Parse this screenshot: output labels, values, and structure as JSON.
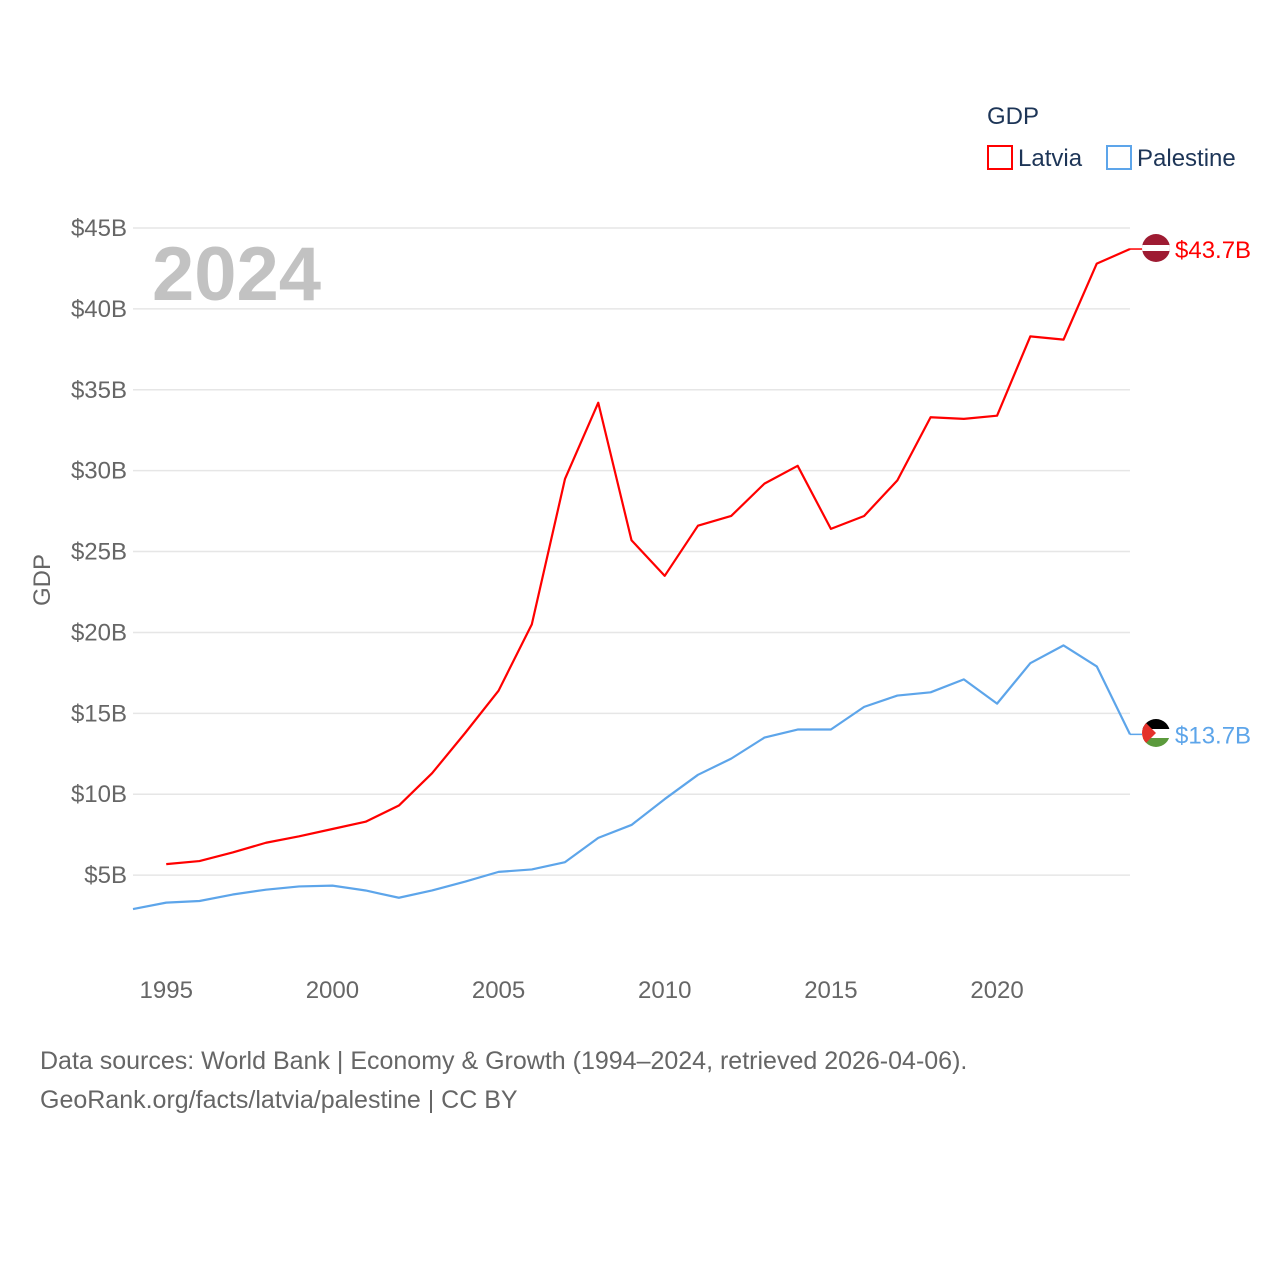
{
  "chart_data": {
    "type": "line",
    "title": "GDP",
    "ylabel": "GDP",
    "xlabel": "",
    "year_label": "2024",
    "ylim": [
      0,
      45
    ],
    "xlim": [
      1994,
      2024
    ],
    "y_ticks": [
      5,
      10,
      15,
      20,
      25,
      30,
      35,
      40,
      45
    ],
    "y_tick_labels": [
      "$5B",
      "$10B",
      "$15B",
      "$20B",
      "$25B",
      "$30B",
      "$35B",
      "$40B",
      "$45B"
    ],
    "x_ticks": [
      1995,
      2000,
      2005,
      2010,
      2015,
      2020
    ],
    "x_tick_labels": [
      "1995",
      "2000",
      "2005",
      "2010",
      "2015",
      "2020"
    ],
    "grid": true,
    "legend_position": "top-right",
    "series": [
      {
        "name": "Latvia",
        "color": "#ff0000",
        "end_label": "$43.7B",
        "x": [
          1995,
          1996,
          1997,
          1998,
          1999,
          2000,
          2001,
          2002,
          2003,
          2004,
          2005,
          2006,
          2007,
          2008,
          2009,
          2010,
          2011,
          2012,
          2013,
          2014,
          2015,
          2016,
          2017,
          2018,
          2019,
          2020,
          2021,
          2022,
          2023,
          2024
        ],
        "values": [
          5.68,
          5.87,
          6.4,
          7.0,
          7.4,
          7.85,
          8.3,
          9.3,
          11.3,
          13.8,
          16.4,
          20.5,
          29.5,
          34.2,
          25.7,
          23.5,
          26.6,
          27.2,
          29.2,
          30.3,
          26.4,
          27.2,
          29.4,
          33.3,
          33.2,
          33.4,
          38.3,
          38.1,
          42.8,
          43.7
        ]
      },
      {
        "name": "Palestine",
        "color": "#5da5ea",
        "end_label": "$13.7B",
        "x": [
          1994,
          1995,
          1996,
          1997,
          1998,
          1999,
          2000,
          2001,
          2002,
          2003,
          2004,
          2005,
          2006,
          2007,
          2008,
          2009,
          2010,
          2011,
          2012,
          2013,
          2014,
          2015,
          2016,
          2017,
          2018,
          2019,
          2020,
          2021,
          2022,
          2023,
          2024
        ],
        "values": [
          2.9,
          3.3,
          3.4,
          3.8,
          4.1,
          4.3,
          4.35,
          4.05,
          3.6,
          4.05,
          4.6,
          5.2,
          5.35,
          5.8,
          7.3,
          8.1,
          9.7,
          11.2,
          12.2,
          13.5,
          14.0,
          14.0,
          15.4,
          16.1,
          16.3,
          17.1,
          15.6,
          18.1,
          19.2,
          17.9,
          13.7
        ]
      }
    ]
  },
  "footer": {
    "line1": "Data sources: World Bank | Economy & Growth (1994–2024, retrieved 2026-04-06).",
    "line2": "GeoRank.org/facts/latvia/palestine | CC BY"
  }
}
